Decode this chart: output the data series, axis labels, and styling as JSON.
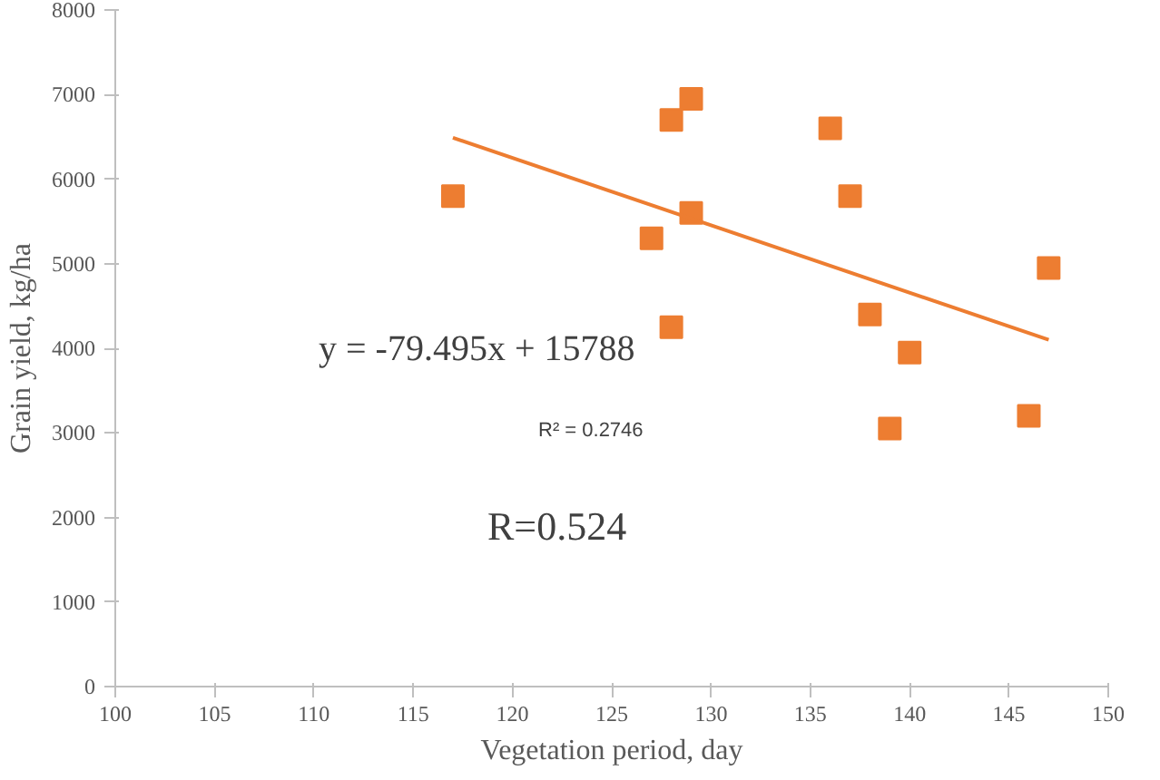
{
  "chart_data": {
    "type": "scatter",
    "xlabel": "Vegetation period, day",
    "ylabel": "Grain yield, kg/ha",
    "x": [
      117,
      127,
      128,
      128,
      129,
      129,
      136,
      137,
      138,
      139,
      140,
      146,
      147
    ],
    "series": [
      {
        "color": "#ed7d31",
        "marker": "square",
        "values": [
          5800,
          5300,
          6700,
          4250,
          6950,
          5600,
          6600,
          5800,
          4400,
          3050,
          3950,
          3200,
          4950
        ]
      },
      {
        "type": "line",
        "color": "#ed7d31",
        "x": [
          117,
          147
        ],
        "values": [
          6490,
          4100
        ]
      }
    ],
    "xlim": [
      100,
      150
    ],
    "xticks": [
      100,
      105,
      110,
      115,
      120,
      125,
      130,
      135,
      140,
      145,
      150
    ],
    "ylim": [
      0,
      8000
    ],
    "yticks": [
      0,
      1000,
      2000,
      3000,
      4000,
      5000,
      6000,
      7000,
      8000
    ],
    "grid": false,
    "annotations": [
      "y = -79.495x + 15788",
      "R² = 0.2746",
      "R=0.524"
    ]
  }
}
